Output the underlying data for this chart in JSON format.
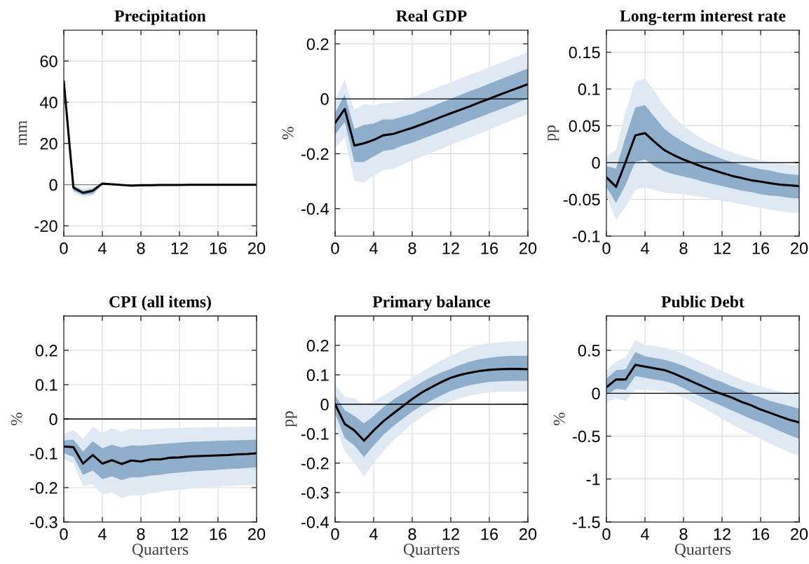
{
  "chart_data": [
    {
      "type": "line",
      "title": "Precipitation",
      "ylabel": "mm",
      "x": [
        0,
        1,
        2,
        3,
        4,
        5,
        6,
        7,
        8,
        9,
        10,
        11,
        12,
        13,
        14,
        15,
        16,
        17,
        18,
        19,
        20
      ],
      "xlim": [
        0,
        20
      ],
      "xticks": [
        0,
        4,
        8,
        12,
        16,
        20
      ],
      "ylim": [
        -25,
        75
      ],
      "yticks": [
        -20,
        0,
        20,
        40,
        60
      ],
      "grid": true,
      "ref_lines": [
        {
          "axis": "y",
          "value": 0,
          "color": "#808080"
        }
      ],
      "series": [
        {
          "color": "#dfe9f4",
          "values": [
            null,
            null,
            null,
            null,
            null,
            null,
            null,
            null,
            null,
            null,
            null,
            null,
            null,
            null,
            null,
            null,
            null,
            null,
            null,
            null,
            null
          ],
          "upper": [
            50,
            0,
            -2,
            -1,
            1,
            0.5,
            0.1,
            -0.2,
            0,
            0,
            0,
            0,
            0,
            0.1,
            0.1,
            0.1,
            0.1,
            0.1,
            0.1,
            0.1,
            0.1
          ],
          "lower": [
            50,
            -4,
            -6,
            -5.5,
            0,
            -0.1,
            -0.5,
            -0.8,
            -0.6,
            -0.5,
            -0.4,
            -0.4,
            -0.4,
            -0.3,
            -0.3,
            -0.3,
            -0.3,
            -0.3,
            -0.3,
            -0.3,
            -0.3
          ]
        },
        {
          "color": "#8faecb",
          "values": [
            null,
            null,
            null,
            null,
            null,
            null,
            null,
            null,
            null,
            null,
            null,
            null,
            null,
            null,
            null,
            null,
            null,
            null,
            null,
            null,
            null
          ],
          "upper": [
            50,
            -0.5,
            -3,
            -2,
            0.8,
            0.4,
            0,
            -0.3,
            -0.1,
            -0.1,
            -0.1,
            -0.1,
            -0.1,
            0,
            0,
            0,
            0,
            0,
            0,
            0,
            0
          ],
          "lower": [
            50,
            -3,
            -5,
            -4.5,
            0.2,
            0,
            -0.4,
            -0.7,
            -0.5,
            -0.4,
            -0.3,
            -0.3,
            -0.3,
            -0.2,
            -0.2,
            -0.2,
            -0.2,
            -0.2,
            -0.2,
            -0.2,
            -0.2
          ]
        },
        {
          "color": "#000000",
          "values": [
            50,
            -1.5,
            -4,
            -3,
            0.5,
            0.2,
            -0.2,
            -0.5,
            -0.3,
            -0.3,
            -0.2,
            -0.2,
            -0.2,
            -0.1,
            -0.1,
            -0.1,
            -0.1,
            -0.1,
            -0.1,
            -0.1,
            -0.1
          ]
        }
      ]
    },
    {
      "type": "line",
      "title": "Real GDP",
      "ylabel": "%",
      "x": [
        0,
        1,
        2,
        3,
        4,
        5,
        6,
        7,
        8,
        9,
        10,
        11,
        12,
        13,
        14,
        15,
        16,
        17,
        18,
        19,
        20
      ],
      "xlim": [
        0,
        20
      ],
      "xticks": [
        0,
        4,
        8,
        12,
        16,
        20
      ],
      "ylim": [
        -0.5,
        0.25
      ],
      "yticks": [
        -0.4,
        -0.2,
        0,
        0.2
      ],
      "grid": true,
      "ref_lines": [
        {
          "axis": "y",
          "value": 0,
          "color": "#000000"
        }
      ],
      "series": [
        {
          "color": "#dfe9f4",
          "values": [
            null,
            null,
            null,
            null,
            null,
            null,
            null,
            null,
            null,
            null,
            null,
            null,
            null,
            null,
            null,
            null,
            null,
            null,
            null,
            null,
            null
          ],
          "upper": [
            -0.005,
            0.07,
            -0.04,
            -0.02,
            -0.025,
            -0.015,
            -0.015,
            -0.005,
            0.005,
            0.019,
            0.033,
            0.046,
            0.06,
            0.074,
            0.088,
            0.101,
            0.115,
            0.129,
            0.143,
            0.156,
            0.17
          ],
          "lower": [
            -0.18,
            -0.14,
            -0.3,
            -0.305,
            -0.28,
            -0.26,
            -0.255,
            -0.24,
            -0.225,
            -0.211,
            -0.197,
            -0.183,
            -0.168,
            -0.154,
            -0.14,
            -0.126,
            -0.112,
            -0.098,
            -0.083,
            -0.069,
            -0.055
          ]
        },
        {
          "color": "#8faecb",
          "values": [
            null,
            null,
            null,
            null,
            null,
            null,
            null,
            null,
            null,
            null,
            null,
            null,
            null,
            null,
            null,
            null,
            null,
            null,
            null,
            null,
            null
          ],
          "upper": [
            -0.05,
            0.015,
            -0.11,
            -0.095,
            -0.09,
            -0.075,
            -0.075,
            -0.065,
            -0.055,
            -0.041,
            -0.028,
            -0.014,
            0.0,
            0.014,
            0.028,
            0.041,
            0.055,
            0.069,
            0.083,
            0.096,
            0.11
          ],
          "lower": [
            -0.13,
            -0.085,
            -0.23,
            -0.23,
            -0.21,
            -0.19,
            -0.185,
            -0.17,
            -0.16,
            -0.147,
            -0.133,
            -0.12,
            -0.107,
            -0.093,
            -0.08,
            -0.067,
            -0.053,
            -0.04,
            -0.027,
            -0.013,
            0.0
          ]
        },
        {
          "color": "#000000",
          "values": [
            -0.088,
            -0.037,
            -0.17,
            -0.162,
            -0.15,
            -0.133,
            -0.128,
            -0.117,
            -0.106,
            -0.093,
            -0.08,
            -0.066,
            -0.053,
            -0.04,
            -0.027,
            -0.013,
            0.0,
            0.014,
            0.027,
            0.04,
            0.053
          ]
        }
      ]
    },
    {
      "type": "line",
      "title": "Long-term interest rate",
      "ylabel": "pp",
      "x": [
        0,
        1,
        2,
        3,
        4,
        5,
        6,
        7,
        8,
        9,
        10,
        11,
        12,
        13,
        14,
        15,
        16,
        17,
        18,
        19,
        20
      ],
      "xlim": [
        0,
        20
      ],
      "xticks": [
        0,
        4,
        8,
        12,
        16,
        20
      ],
      "ylim": [
        -0.1,
        0.18
      ],
      "yticks": [
        -0.1,
        -0.05,
        0,
        0.05,
        0.1,
        0.15
      ],
      "grid": true,
      "ref_lines": [
        {
          "axis": "y",
          "value": 0,
          "color": "#000000"
        }
      ],
      "series": [
        {
          "color": "#dfe9f4",
          "values": [
            null,
            null,
            null,
            null,
            null,
            null,
            null,
            null,
            null,
            null,
            null,
            null,
            null,
            null,
            null,
            null,
            null,
            null,
            null,
            null,
            null
          ],
          "upper": [
            0.008,
            0.017,
            0.07,
            0.11,
            0.114,
            0.097,
            0.077,
            0.062,
            0.05,
            0.04,
            0.032,
            0.025,
            0.019,
            0.014,
            0.01,
            0.006,
            0.003,
            0.001,
            -0.001,
            -0.003,
            -0.004
          ],
          "lower": [
            -0.045,
            -0.078,
            -0.06,
            -0.037,
            -0.034,
            -0.037,
            -0.041,
            -0.042,
            -0.043,
            -0.045,
            -0.047,
            -0.049,
            -0.052,
            -0.054,
            -0.057,
            -0.059,
            -0.062,
            -0.064,
            -0.066,
            -0.068,
            -0.069
          ]
        },
        {
          "color": "#8faecb",
          "values": [
            null,
            null,
            null,
            null,
            null,
            null,
            null,
            null,
            null,
            null,
            null,
            null,
            null,
            null,
            null,
            null,
            null,
            null,
            null,
            null,
            null
          ],
          "upper": [
            -0.005,
            -0.008,
            0.035,
            0.075,
            0.078,
            0.062,
            0.046,
            0.036,
            0.028,
            0.021,
            0.015,
            0.01,
            0.005,
            0.001,
            -0.003,
            -0.006,
            -0.009,
            -0.011,
            -0.014,
            -0.016,
            -0.017
          ],
          "lower": [
            -0.033,
            -0.055,
            -0.03,
            0.001,
            0.004,
            -0.005,
            -0.012,
            -0.016,
            -0.019,
            -0.022,
            -0.026,
            -0.029,
            -0.032,
            -0.035,
            -0.038,
            -0.04,
            -0.043,
            -0.045,
            -0.046,
            -0.048,
            -0.049
          ]
        },
        {
          "color": "#000000",
          "values": [
            -0.02,
            -0.033,
            0.001,
            0.037,
            0.04,
            0.028,
            0.017,
            0.01,
            0.004,
            -0.001,
            -0.006,
            -0.01,
            -0.014,
            -0.018,
            -0.021,
            -0.024,
            -0.026,
            -0.028,
            -0.03,
            -0.031,
            -0.032
          ]
        }
      ]
    },
    {
      "type": "line",
      "title": "CPI (all items)",
      "xlabel": "Quarters",
      "ylabel": "%",
      "x": [
        0,
        1,
        2,
        3,
        4,
        5,
        6,
        7,
        8,
        9,
        10,
        11,
        12,
        13,
        14,
        15,
        16,
        17,
        18,
        19,
        20
      ],
      "xlim": [
        0,
        20
      ],
      "xticks": [
        0,
        4,
        8,
        12,
        16,
        20
      ],
      "ylim": [
        -0.3,
        0.3
      ],
      "yticks": [
        -0.3,
        -0.2,
        -0.1,
        0,
        0.1,
        0.2
      ],
      "grid": true,
      "ref_lines": [
        {
          "axis": "y",
          "value": 0,
          "color": "#000000"
        }
      ],
      "series": [
        {
          "color": "#dfe9f4",
          "values": [
            null,
            null,
            null,
            null,
            null,
            null,
            null,
            null,
            null,
            null,
            null,
            null,
            null,
            null,
            null,
            null,
            null,
            null,
            null,
            null,
            null
          ],
          "upper": [
            -0.043,
            -0.032,
            -0.058,
            -0.023,
            -0.04,
            -0.027,
            -0.037,
            -0.028,
            -0.031,
            -0.029,
            -0.028,
            -0.027,
            -0.026,
            -0.025,
            -0.025,
            -0.024,
            -0.024,
            -0.024,
            -0.023,
            -0.023,
            -0.023
          ],
          "lower": [
            -0.118,
            -0.13,
            -0.196,
            -0.19,
            -0.22,
            -0.215,
            -0.23,
            -0.222,
            -0.223,
            -0.217,
            -0.213,
            -0.208,
            -0.206,
            -0.203,
            -0.2,
            -0.199,
            -0.197,
            -0.195,
            -0.194,
            -0.193,
            -0.192
          ]
        },
        {
          "color": "#8faecb",
          "values": [
            null,
            null,
            null,
            null,
            null,
            null,
            null,
            null,
            null,
            null,
            null,
            null,
            null,
            null,
            null,
            null,
            null,
            null,
            null,
            null,
            null
          ],
          "upper": [
            -0.063,
            -0.06,
            -0.095,
            -0.065,
            -0.085,
            -0.075,
            -0.083,
            -0.077,
            -0.078,
            -0.075,
            -0.073,
            -0.071,
            -0.069,
            -0.067,
            -0.066,
            -0.065,
            -0.064,
            -0.063,
            -0.062,
            -0.061,
            -0.06
          ],
          "lower": [
            -0.1,
            -0.11,
            -0.163,
            -0.15,
            -0.175,
            -0.167,
            -0.178,
            -0.17,
            -0.17,
            -0.165,
            -0.163,
            -0.158,
            -0.156,
            -0.153,
            -0.151,
            -0.15,
            -0.148,
            -0.146,
            -0.145,
            -0.143,
            -0.141
          ]
        },
        {
          "color": "#000000",
          "values": [
            -0.08,
            -0.082,
            -0.13,
            -0.105,
            -0.13,
            -0.12,
            -0.131,
            -0.121,
            -0.124,
            -0.118,
            -0.118,
            -0.113,
            -0.112,
            -0.109,
            -0.108,
            -0.107,
            -0.106,
            -0.105,
            -0.103,
            -0.102,
            -0.1
          ]
        }
      ]
    },
    {
      "type": "line",
      "title": "Primary balance",
      "xlabel": "Quarters",
      "ylabel": "pp",
      "x": [
        0,
        1,
        2,
        3,
        4,
        5,
        6,
        7,
        8,
        9,
        10,
        11,
        12,
        13,
        14,
        15,
        16,
        17,
        18,
        19,
        20
      ],
      "xlim": [
        0,
        20
      ],
      "xticks": [
        0,
        4,
        8,
        12,
        16,
        20
      ],
      "ylim": [
        -0.4,
        0.3
      ],
      "yticks": [
        -0.4,
        -0.3,
        -0.2,
        -0.1,
        0,
        0.1,
        0.2
      ],
      "grid": true,
      "ref_lines": [
        {
          "axis": "y",
          "value": 0,
          "color": "#000000"
        }
      ],
      "series": [
        {
          "color": "#dfe9f4",
          "values": [
            null,
            null,
            null,
            null,
            null,
            null,
            null,
            null,
            null,
            null,
            null,
            null,
            null,
            null,
            null,
            null,
            null,
            null,
            null,
            null,
            null
          ],
          "upper": [
            0.068,
            0.025,
            0.02,
            0.0,
            0.01,
            0.03,
            0.05,
            0.07,
            0.09,
            0.11,
            0.13,
            0.148,
            0.165,
            0.18,
            0.193,
            0.202,
            0.208,
            0.211,
            0.213,
            0.214,
            0.214
          ],
          "lower": [
            -0.07,
            -0.16,
            -0.2,
            -0.245,
            -0.2,
            -0.16,
            -0.125,
            -0.095,
            -0.065,
            -0.043,
            -0.022,
            -0.005,
            0.01,
            0.021,
            0.03,
            0.036,
            0.04,
            0.042,
            0.043,
            0.043,
            0.043
          ]
        },
        {
          "color": "#8faecb",
          "values": [
            null,
            null,
            null,
            null,
            null,
            null,
            null,
            null,
            null,
            null,
            null,
            null,
            null,
            null,
            null,
            null,
            null,
            null,
            null,
            null,
            null
          ],
          "upper": [
            0.03,
            -0.02,
            -0.04,
            -0.065,
            -0.04,
            -0.01,
            0.015,
            0.035,
            0.055,
            0.075,
            0.093,
            0.108,
            0.12,
            0.134,
            0.145,
            0.153,
            0.158,
            0.162,
            0.164,
            0.165,
            0.165
          ],
          "lower": [
            -0.03,
            -0.115,
            -0.14,
            -0.18,
            -0.14,
            -0.105,
            -0.075,
            -0.05,
            -0.025,
            -0.005,
            0.013,
            0.03,
            0.045,
            0.056,
            0.065,
            0.071,
            0.076,
            0.078,
            0.079,
            0.08,
            0.08
          ]
        },
        {
          "color": "#000000",
          "values": [
            0.0,
            -0.067,
            -0.089,
            -0.124,
            -0.089,
            -0.058,
            -0.032,
            -0.007,
            0.018,
            0.04,
            0.058,
            0.075,
            0.09,
            0.1,
            0.107,
            0.113,
            0.117,
            0.119,
            0.12,
            0.12,
            0.119
          ]
        }
      ]
    },
    {
      "type": "line",
      "title": "Public Debt",
      "xlabel": "Quarters",
      "ylabel": "%",
      "x": [
        0,
        1,
        2,
        3,
        4,
        5,
        6,
        7,
        8,
        9,
        10,
        11,
        12,
        13,
        14,
        15,
        16,
        17,
        18,
        19,
        20
      ],
      "xlim": [
        0,
        20
      ],
      "xticks": [
        0,
        4,
        8,
        12,
        16,
        20
      ],
      "ylim": [
        -1.5,
        0.9
      ],
      "yticks": [
        -1.5,
        -1,
        -0.5,
        0,
        0.5
      ],
      "grid": true,
      "ref_lines": [
        {
          "axis": "y",
          "value": 0,
          "color": "#000000"
        }
      ],
      "series": [
        {
          "color": "#dfe9f4",
          "values": [
            null,
            null,
            null,
            null,
            null,
            null,
            null,
            null,
            null,
            null,
            null,
            null,
            null,
            null,
            null,
            null,
            null,
            null,
            null,
            null,
            null
          ],
          "upper": [
            0.26,
            0.37,
            0.42,
            0.62,
            0.56,
            0.55,
            0.53,
            0.5,
            0.46,
            0.41,
            0.36,
            0.31,
            0.26,
            0.21,
            0.16,
            0.12,
            0.08,
            0.05,
            0.02,
            0.0,
            -0.01
          ],
          "lower": [
            -0.1,
            -0.06,
            -0.09,
            0.04,
            0.04,
            0.035,
            0.02,
            -0.01,
            -0.05,
            -0.11,
            -0.17,
            -0.23,
            -0.3,
            -0.36,
            -0.42,
            -0.48,
            -0.53,
            -0.59,
            -0.64,
            -0.69,
            -0.73
          ]
        },
        {
          "color": "#8faecb",
          "values": [
            null,
            null,
            null,
            null,
            null,
            null,
            null,
            null,
            null,
            null,
            null,
            null,
            null,
            null,
            null,
            null,
            null,
            null,
            null,
            null,
            null
          ],
          "upper": [
            0.17,
            0.27,
            0.28,
            0.48,
            0.43,
            0.41,
            0.39,
            0.36,
            0.32,
            0.27,
            0.22,
            0.17,
            0.13,
            0.08,
            0.04,
            -0.01,
            -0.05,
            -0.09,
            -0.12,
            -0.15,
            -0.18
          ],
          "lower": [
            -0.02,
            0.05,
            0.04,
            0.2,
            0.18,
            0.16,
            0.14,
            0.11,
            0.06,
            0.0,
            -0.05,
            -0.1,
            -0.15,
            -0.2,
            -0.25,
            -0.3,
            -0.34,
            -0.39,
            -0.44,
            -0.49,
            -0.53
          ]
        },
        {
          "color": "#000000",
          "values": [
            0.07,
            0.16,
            0.16,
            0.33,
            0.31,
            0.29,
            0.27,
            0.23,
            0.18,
            0.13,
            0.08,
            0.03,
            -0.01,
            -0.05,
            -0.1,
            -0.14,
            -0.19,
            -0.23,
            -0.27,
            -0.31,
            -0.34
          ]
        }
      ]
    }
  ]
}
